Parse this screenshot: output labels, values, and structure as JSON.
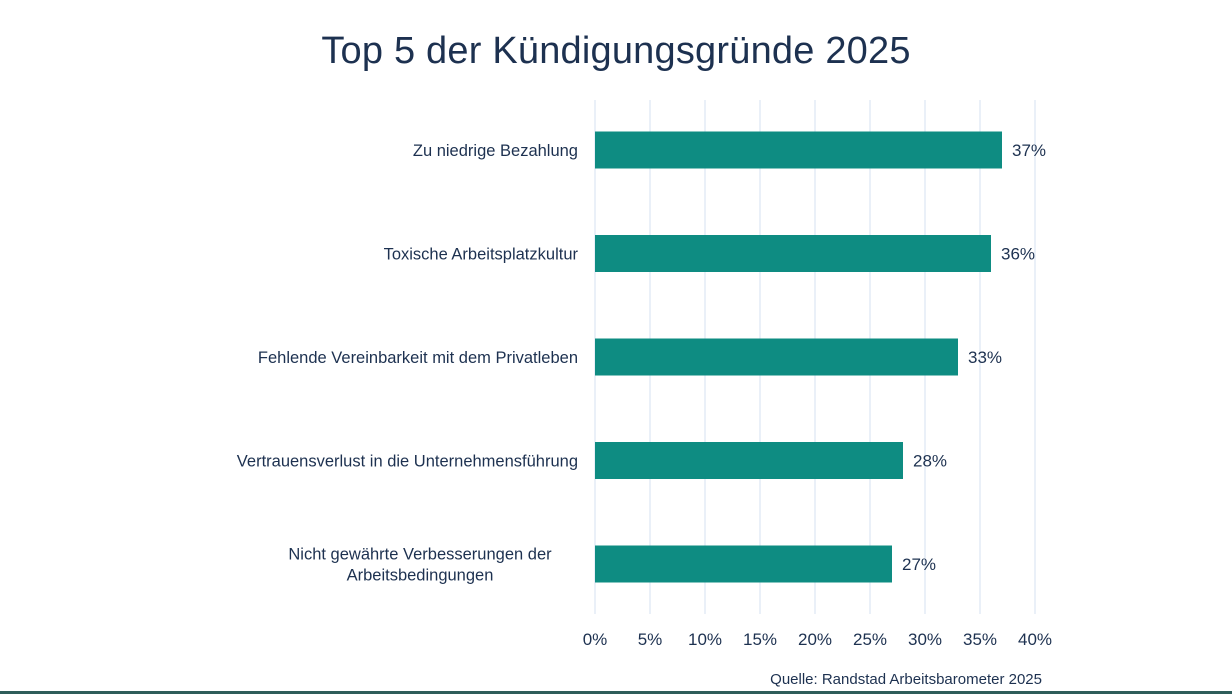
{
  "chart_data": {
    "type": "bar",
    "orientation": "horizontal",
    "title": "Top 5 der Kündigungsgründe 2025",
    "categories": [
      [
        "Zu niedrige Bezahlung"
      ],
      [
        "Toxische Arbeitsplatzkultur"
      ],
      [
        "Fehlende Vereinbarkeit mit dem Privatleben"
      ],
      [
        "Vertrauensverlust in die Unternehmensführung"
      ],
      [
        "Nicht gewährte Verbesserungen der",
        "Arbeitsbedingungen"
      ]
    ],
    "values": [
      37,
      36,
      33,
      28,
      27
    ],
    "value_labels": [
      "37%",
      "36%",
      "33%",
      "28%",
      "27%"
    ],
    "xlim": [
      0,
      40
    ],
    "x_ticks": [
      0,
      5,
      10,
      15,
      20,
      25,
      30,
      35,
      40
    ],
    "x_tick_labels": [
      "0%",
      "5%",
      "10%",
      "15%",
      "20%",
      "25%",
      "30%",
      "35%",
      "40%"
    ],
    "grid": "vertical",
    "bar_color": "#0e8c82",
    "grid_color": "#dde7f3",
    "text_color": "#1d3150",
    "source": "Quelle: Randstad Arbeitsbarometer 2025"
  }
}
